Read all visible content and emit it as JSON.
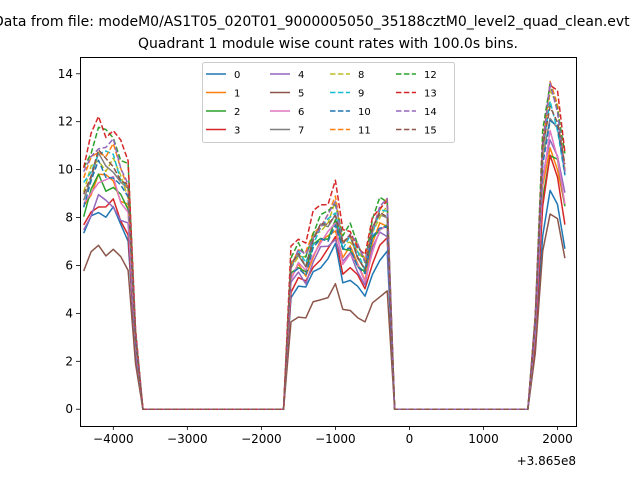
{
  "figure": {
    "suptitle": "Data from file: modeM0/AS1T05_020T01_9000005050_35188cztM0_level2_quad_clean.evt"
  },
  "chart_data": {
    "type": "line",
    "title": "Quadrant 1 module wise count rates with 100.0s bins.",
    "xlabel": "",
    "ylabel": "",
    "x_offset_label": "+3.865e8",
    "x_offset": 386500000,
    "xlim": [
      386495550,
      386502250
    ],
    "ylim": [
      -0.7,
      14.7
    ],
    "xticks": [
      -4000,
      -3000,
      -2000,
      -1000,
      0,
      1000,
      2000
    ],
    "xtick_labels": [
      "−4000",
      "−3000",
      "−2000",
      "−1000",
      "0",
      "1000",
      "2000"
    ],
    "yticks": [
      0,
      2,
      4,
      6,
      8,
      10,
      12,
      14
    ],
    "grid": false,
    "legend": {
      "placement": "top-center",
      "columns": 4
    },
    "series": [
      {
        "name": "0",
        "color": "#1f77b4",
        "dash": "solid",
        "bases": [
          8.4,
          5.9,
          6.0,
          8.5
        ]
      },
      {
        "name": "1",
        "color": "#ff7f0e",
        "dash": "solid",
        "bases": [
          9.8,
          6.7,
          7.2,
          10.4
        ]
      },
      {
        "name": "2",
        "color": "#2ca02c",
        "dash": "solid",
        "bases": [
          9.6,
          6.9,
          7.3,
          10.3
        ]
      },
      {
        "name": "3",
        "color": "#d62728",
        "dash": "solid",
        "bases": [
          8.7,
          6.2,
          6.5,
          9.8
        ]
      },
      {
        "name": "4",
        "color": "#9467bd",
        "dash": "solid",
        "bases": [
          8.8,
          6.4,
          6.9,
          10.9
        ]
      },
      {
        "name": "5",
        "color": "#8c564b",
        "dash": "solid",
        "bases": [
          6.8,
          4.5,
          4.6,
          7.8
        ]
      },
      {
        "name": "6",
        "color": "#e377c2",
        "dash": "solid",
        "bases": [
          9.7,
          6.8,
          7.0,
          10.8
        ]
      },
      {
        "name": "7",
        "color": "#7f7f7f",
        "dash": "solid",
        "bases": [
          10.4,
          7.3,
          7.7,
          11.9
        ]
      },
      {
        "name": "8",
        "color": "#bcbd22",
        "dash": "dashed",
        "bases": [
          10.5,
          7.4,
          7.8,
          12.5
        ]
      },
      {
        "name": "9",
        "color": "#17becf",
        "dash": "dashed",
        "bases": [
          10.8,
          7.3,
          7.7,
          12.1
        ]
      },
      {
        "name": "10",
        "color": "#1f77b4",
        "dash": "dashed",
        "bases": [
          10.1,
          6.8,
          7.3,
          11.8
        ]
      },
      {
        "name": "11",
        "color": "#ff7f0e",
        "dash": "dashed",
        "bases": [
          11.0,
          7.6,
          8.0,
          12.7
        ]
      },
      {
        "name": "12",
        "color": "#2ca02c",
        "dash": "dashed",
        "bases": [
          11.7,
          7.7,
          8.2,
          13.0
        ]
      },
      {
        "name": "13",
        "color": "#d62728",
        "dash": "dashed",
        "bases": [
          12.0,
          8.3,
          8.2,
          13.1
        ]
      },
      {
        "name": "14",
        "color": "#9467bd",
        "dash": "dashed",
        "bases": [
          11.2,
          7.5,
          8.0,
          12.6
        ]
      },
      {
        "name": "15",
        "color": "#8c564b",
        "dash": "dashed",
        "bases": [
          10.6,
          7.3,
          7.7,
          12.3
        ]
      }
    ],
    "x": [
      -4400,
      -4300,
      -4200,
      -4100,
      -4000,
      -3900,
      -3800,
      -3700,
      -3600,
      -3500,
      -3400,
      -3300,
      -3200,
      -3100,
      -3000,
      -2900,
      -2800,
      -2700,
      -2600,
      -2500,
      -2400,
      -2300,
      -2200,
      -2100,
      -2000,
      -1900,
      -1800,
      -1700,
      -1600,
      -1500,
      -1400,
      -1300,
      -1200,
      -1100,
      -1000,
      -900,
      -800,
      -700,
      -600,
      -500,
      -400,
      -300,
      -200,
      -100,
      0,
      100,
      200,
      300,
      400,
      500,
      600,
      700,
      800,
      900,
      1000,
      1100,
      1200,
      1300,
      1400,
      1500,
      1600,
      1700,
      1800,
      1900,
      2000,
      2100
    ],
    "segments": [
      {
        "segment": 0,
        "from": -4400,
        "to": -3700,
        "shape": [
          0.86,
          0.94,
          1.0,
          0.97,
          0.98,
          0.91,
          0.86,
          0.28
        ]
      },
      {
        "segment": 1,
        "from": -1600,
        "to": -1000,
        "shape": [
          0.81,
          0.88,
          0.84,
          0.97,
          1.03,
          1.06,
          1.14
        ]
      },
      {
        "segment": 2,
        "from": -900,
        "to": -300,
        "shape": [
          0.89,
          0.92,
          0.84,
          0.77,
          0.96,
          1.05,
          1.07
        ]
      },
      {
        "segment": 3,
        "from": 1700,
        "to": 2100,
        "shape": [
          0.3,
          0.87,
          1.05,
          0.99,
          0.81
        ]
      }
    ],
    "baseline_value": 0
  }
}
